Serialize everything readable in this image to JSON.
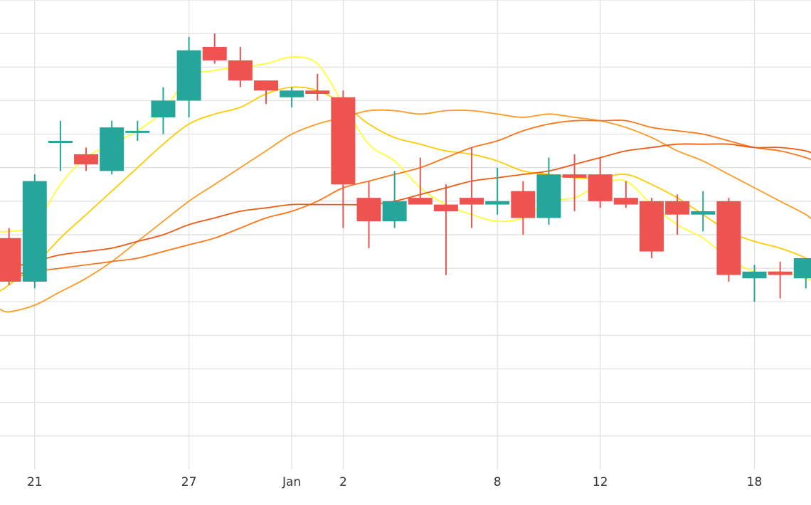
{
  "chart_data": {
    "type": "candlestick",
    "title": "",
    "xlabel": "",
    "ylabel": "",
    "grid": true,
    "x_tick_labels": [
      "21",
      "27",
      "Jan",
      "2",
      "8",
      "12",
      "18"
    ],
    "x_tick_days": [
      21,
      27,
      31,
      33,
      39,
      43,
      49
    ],
    "ylim": [
      0,
      14
    ],
    "xlim": [
      19.65,
      51.2
    ],
    "colors": {
      "up": "#26a69a",
      "down": "#ef5350",
      "ma": [
        "#ffff33",
        "#ffcc00",
        "#ff9a26",
        "#ff7519",
        "#f05a13"
      ]
    },
    "candles": [
      {
        "day": 20,
        "open": 6.9,
        "high": 7.2,
        "low": 5.5,
        "close": 5.6
      },
      {
        "day": 21,
        "open": 5.6,
        "high": 8.8,
        "low": 5.4,
        "close": 8.6
      },
      {
        "day": 22,
        "open": 9.8,
        "high": 10.4,
        "low": 8.9,
        "close": 9.8
      },
      {
        "day": 23,
        "open": 9.4,
        "high": 9.6,
        "low": 8.9,
        "close": 9.1
      },
      {
        "day": 24,
        "open": 8.9,
        "high": 10.4,
        "low": 8.8,
        "close": 10.2
      },
      {
        "day": 25,
        "open": 10.1,
        "high": 10.4,
        "low": 9.8,
        "close": 10.1
      },
      {
        "day": 26,
        "open": 10.5,
        "high": 11.4,
        "low": 10.0,
        "close": 11.0
      },
      {
        "day": 27,
        "open": 11.0,
        "high": 12.9,
        "low": 10.5,
        "close": 12.5
      },
      {
        "day": 28,
        "open": 12.6,
        "high": 13.0,
        "low": 12.1,
        "close": 12.2
      },
      {
        "day": 29,
        "open": 12.2,
        "high": 12.6,
        "low": 11.4,
        "close": 11.6
      },
      {
        "day": 30,
        "open": 11.6,
        "high": 11.6,
        "low": 10.9,
        "close": 11.3
      },
      {
        "day": 31,
        "open": 11.1,
        "high": 11.4,
        "low": 10.8,
        "close": 11.3
      },
      {
        "day": 32,
        "open": 11.3,
        "high": 11.8,
        "low": 11.0,
        "close": 11.2
      },
      {
        "day": 33,
        "open": 11.1,
        "high": 11.3,
        "low": 7.2,
        "close": 8.5
      },
      {
        "day": 34,
        "open": 8.1,
        "high": 8.6,
        "low": 6.6,
        "close": 7.4
      },
      {
        "day": 35,
        "open": 7.4,
        "high": 8.9,
        "low": 7.2,
        "close": 8.0
      },
      {
        "day": 36,
        "open": 8.1,
        "high": 9.3,
        "low": 8.0,
        "close": 7.9
      },
      {
        "day": 37,
        "open": 7.9,
        "high": 8.5,
        "low": 5.8,
        "close": 7.7
      },
      {
        "day": 38,
        "open": 8.1,
        "high": 9.6,
        "low": 7.2,
        "close": 7.9
      },
      {
        "day": 39,
        "open": 7.9,
        "high": 9.0,
        "low": 7.6,
        "close": 8.0
      },
      {
        "day": 40,
        "open": 8.3,
        "high": 8.6,
        "low": 7.0,
        "close": 7.5
      },
      {
        "day": 41,
        "open": 7.5,
        "high": 9.3,
        "low": 7.3,
        "close": 8.8
      },
      {
        "day": 42,
        "open": 8.8,
        "high": 9.4,
        "low": 7.7,
        "close": 8.7
      },
      {
        "day": 43,
        "open": 8.8,
        "high": 9.3,
        "low": 7.8,
        "close": 8.0
      },
      {
        "day": 44,
        "open": 8.1,
        "high": 8.6,
        "low": 7.8,
        "close": 7.9
      },
      {
        "day": 45,
        "open": 8.0,
        "high": 8.1,
        "low": 6.3,
        "close": 6.5
      },
      {
        "day": 46,
        "open": 8.0,
        "high": 8.2,
        "low": 7.0,
        "close": 7.6
      },
      {
        "day": 47,
        "open": 7.6,
        "high": 8.3,
        "low": 7.1,
        "close": 7.7
      },
      {
        "day": 48,
        "open": 8.0,
        "high": 8.1,
        "low": 5.6,
        "close": 5.8
      },
      {
        "day": 49,
        "open": 5.7,
        "high": 6.1,
        "low": 5.0,
        "close": 5.9
      },
      {
        "day": 50,
        "open": 5.9,
        "high": 6.2,
        "low": 5.1,
        "close": 5.8
      },
      {
        "day": 51,
        "open": 5.7,
        "high": 6.3,
        "low": 5.4,
        "close": 6.3
      },
      {
        "day": 52,
        "open": 6.3,
        "high": 6.6,
        "low": 5.9,
        "close": 6.0
      }
    ],
    "moving_averages": [
      {
        "color": "#ffff33",
        "points": [
          [
            19.6,
            7.1
          ],
          [
            20,
            7.1
          ],
          [
            21,
            7.3
          ],
          [
            22,
            8.5
          ],
          [
            23,
            9.3
          ],
          [
            24,
            9.7
          ],
          [
            25,
            10.1
          ],
          [
            26,
            10.7
          ],
          [
            27,
            11.7
          ],
          [
            28,
            11.9
          ],
          [
            29,
            12.0
          ],
          [
            30,
            12.1
          ],
          [
            31,
            12.3
          ],
          [
            32,
            12.1
          ],
          [
            33,
            10.9
          ],
          [
            34,
            9.7
          ],
          [
            35,
            9.2
          ],
          [
            36,
            8.4
          ],
          [
            37,
            7.9
          ],
          [
            38,
            7.6
          ],
          [
            39,
            7.4
          ],
          [
            40,
            7.5
          ],
          [
            41,
            8.0
          ],
          [
            42,
            8.1
          ],
          [
            43,
            8.5
          ],
          [
            44,
            8.6
          ],
          [
            45,
            7.9
          ],
          [
            46,
            7.3
          ],
          [
            47,
            6.9
          ],
          [
            48,
            6.3
          ],
          [
            49,
            5.9
          ],
          [
            50,
            5.9
          ],
          [
            51,
            5.7
          ],
          [
            51.3,
            5.6
          ]
        ]
      },
      {
        "color": "#ffcc00",
        "points": [
          [
            19.6,
            5.3
          ],
          [
            20,
            5.5
          ],
          [
            21,
            6.1
          ],
          [
            22,
            6.9
          ],
          [
            23,
            7.6
          ],
          [
            24,
            8.3
          ],
          [
            25,
            9.0
          ],
          [
            26,
            9.7
          ],
          [
            27,
            10.3
          ],
          [
            28,
            10.6
          ],
          [
            29,
            10.8
          ],
          [
            30,
            11.2
          ],
          [
            31,
            11.4
          ],
          [
            32,
            11.3
          ],
          [
            33,
            10.9
          ],
          [
            34,
            10.3
          ],
          [
            35,
            9.9
          ],
          [
            36,
            9.7
          ],
          [
            37,
            9.5
          ],
          [
            38,
            9.4
          ],
          [
            39,
            9.2
          ],
          [
            40,
            8.9
          ],
          [
            41,
            8.8
          ],
          [
            42,
            8.7
          ],
          [
            43,
            8.7
          ],
          [
            44,
            8.8
          ],
          [
            45,
            8.5
          ],
          [
            46,
            8.1
          ],
          [
            47,
            7.6
          ],
          [
            48,
            7.1
          ],
          [
            49,
            6.8
          ],
          [
            50,
            6.6
          ],
          [
            51,
            6.3
          ],
          [
            51.3,
            6.1
          ]
        ]
      },
      {
        "color": "#ff9a26",
        "points": [
          [
            19.6,
            4.8
          ],
          [
            20,
            4.7
          ],
          [
            21,
            4.9
          ],
          [
            22,
            5.3
          ],
          [
            23,
            5.7
          ],
          [
            24,
            6.2
          ],
          [
            25,
            6.8
          ],
          [
            26,
            7.4
          ],
          [
            27,
            8.0
          ],
          [
            28,
            8.5
          ],
          [
            29,
            9.0
          ],
          [
            30,
            9.5
          ],
          [
            31,
            10.0
          ],
          [
            32,
            10.3
          ],
          [
            33,
            10.5
          ],
          [
            34,
            10.7
          ],
          [
            35,
            10.7
          ],
          [
            36,
            10.6
          ],
          [
            37,
            10.7
          ],
          [
            38,
            10.7
          ],
          [
            39,
            10.6
          ],
          [
            40,
            10.5
          ],
          [
            41,
            10.6
          ],
          [
            42,
            10.5
          ],
          [
            43,
            10.4
          ],
          [
            44,
            10.2
          ],
          [
            45,
            9.9
          ],
          [
            46,
            9.5
          ],
          [
            47,
            9.2
          ],
          [
            48,
            8.8
          ],
          [
            49,
            8.4
          ],
          [
            50,
            8.0
          ],
          [
            51,
            7.6
          ],
          [
            51.3,
            7.4
          ]
        ]
      },
      {
        "color": "#ff7519",
        "points": [
          [
            19.6,
            5.7
          ],
          [
            20,
            5.8
          ],
          [
            21,
            5.9
          ],
          [
            22,
            6.0
          ],
          [
            23,
            6.1
          ],
          [
            24,
            6.2
          ],
          [
            25,
            6.3
          ],
          [
            26,
            6.5
          ],
          [
            27,
            6.7
          ],
          [
            28,
            6.9
          ],
          [
            29,
            7.2
          ],
          [
            30,
            7.5
          ],
          [
            31,
            7.7
          ],
          [
            32,
            8.0
          ],
          [
            33,
            8.4
          ],
          [
            34,
            8.6
          ],
          [
            35,
            8.8
          ],
          [
            36,
            9.0
          ],
          [
            37,
            9.3
          ],
          [
            38,
            9.6
          ],
          [
            39,
            9.8
          ],
          [
            40,
            10.1
          ],
          [
            41,
            10.3
          ],
          [
            42,
            10.4
          ],
          [
            43,
            10.4
          ],
          [
            44,
            10.4
          ],
          [
            45,
            10.2
          ],
          [
            46,
            10.1
          ],
          [
            47,
            10.0
          ],
          [
            48,
            9.8
          ],
          [
            49,
            9.6
          ],
          [
            50,
            9.5
          ],
          [
            51,
            9.3
          ],
          [
            51.3,
            9.2
          ]
        ]
      },
      {
        "color": "#f05a13",
        "points": [
          [
            19.6,
            5.9
          ],
          [
            20,
            6.0
          ],
          [
            21,
            6.2
          ],
          [
            22,
            6.4
          ],
          [
            23,
            6.5
          ],
          [
            24,
            6.6
          ],
          [
            25,
            6.8
          ],
          [
            26,
            7.0
          ],
          [
            27,
            7.3
          ],
          [
            28,
            7.5
          ],
          [
            29,
            7.7
          ],
          [
            30,
            7.8
          ],
          [
            31,
            7.9
          ],
          [
            32,
            7.9
          ],
          [
            33,
            7.9
          ],
          [
            34,
            7.9
          ],
          [
            35,
            8.0
          ],
          [
            36,
            8.2
          ],
          [
            37,
            8.4
          ],
          [
            38,
            8.6
          ],
          [
            39,
            8.7
          ],
          [
            40,
            8.8
          ],
          [
            41,
            8.9
          ],
          [
            42,
            9.1
          ],
          [
            43,
            9.3
          ],
          [
            44,
            9.5
          ],
          [
            45,
            9.6
          ],
          [
            46,
            9.7
          ],
          [
            47,
            9.7
          ],
          [
            48,
            9.7
          ],
          [
            49,
            9.6
          ],
          [
            50,
            9.6
          ],
          [
            51,
            9.5
          ],
          [
            51.3,
            9.4
          ]
        ]
      }
    ]
  }
}
